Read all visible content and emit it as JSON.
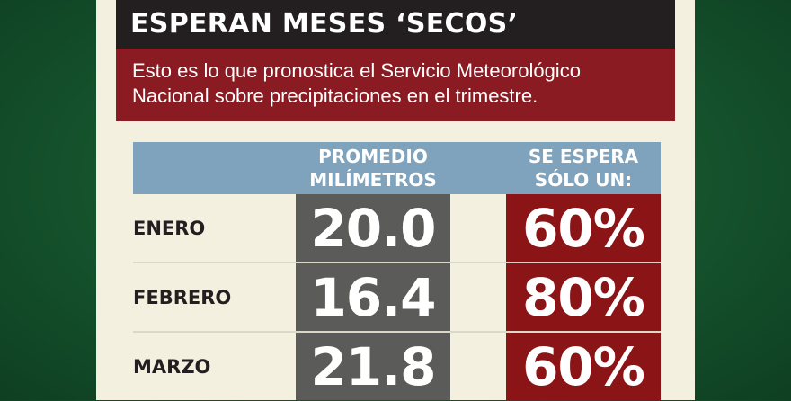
{
  "title": "ESPERAN MESES ‘SECOS’",
  "subtitle": "Esto es lo que pronostica el Servicio Meteorológico Nacional sobre precipitaciones en el trimestre.",
  "columns": {
    "month": "",
    "average": "PROMEDIO\nMILÍMETROS",
    "expected": "SE ESPERA\nSÓLO UN:"
  },
  "rows": [
    {
      "month": "ENERO",
      "average": "20.0",
      "expected": "60%"
    },
    {
      "month": "FEBRERO",
      "average": "16.4",
      "expected": "80%"
    },
    {
      "month": "MARZO",
      "average": "21.8",
      "expected": "60%"
    }
  ],
  "colors": {
    "title_bg": "#231f20",
    "subtitle_bg": "#8a1b22",
    "header_bg": "#7fa3bc",
    "average_bg": "#5b5b59",
    "expected_bg": "#8a1416",
    "page_bg": "#f4f0df",
    "background": "#15532d"
  },
  "chart_data": {
    "type": "table",
    "title": "ESPERAN MESES ‘SECOS’",
    "subtitle": "Esto es lo que pronostica el Servicio Meteorológico Nacional sobre precipitaciones en el trimestre.",
    "columns": [
      "",
      "PROMEDIO MILÍMETROS",
      "SE ESPERA SÓLO UN:"
    ],
    "categories": [
      "ENERO",
      "FEBRERO",
      "MARZO"
    ],
    "series": [
      {
        "name": "PROMEDIO MILÍMETROS",
        "values": [
          20.0,
          16.4,
          21.8
        ]
      },
      {
        "name": "SE ESPERA SÓLO UN:",
        "values": [
          60,
          80,
          60
        ],
        "unit": "%"
      }
    ]
  }
}
